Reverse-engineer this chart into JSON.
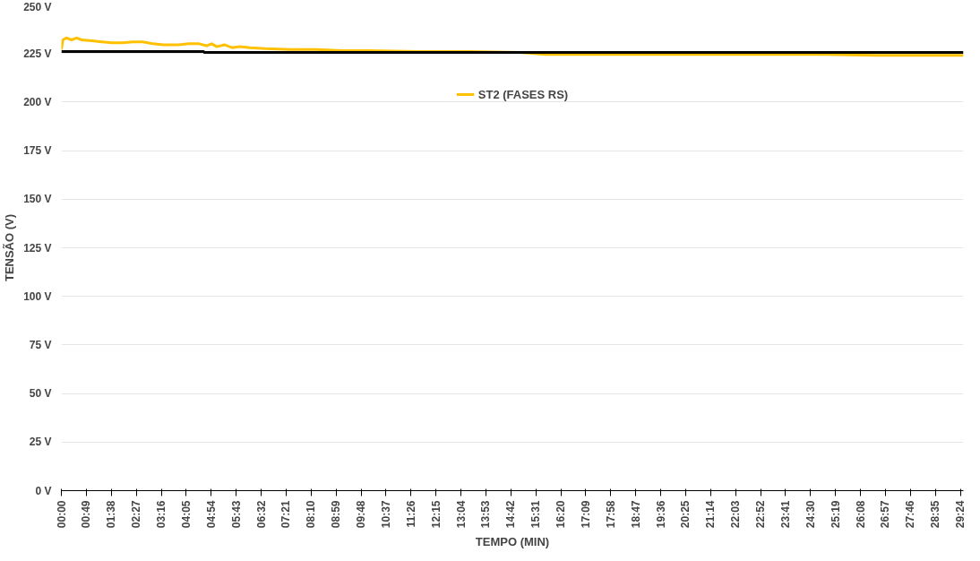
{
  "chart_data": {
    "type": "line",
    "xlabel": "TEMPO (MIN)",
    "ylabel": "TENSÃO (V)",
    "xlim": [
      0,
      1770
    ],
    "ylim": [
      0,
      250
    ],
    "xticks": [
      {
        "value": 0,
        "label": "00:00"
      },
      {
        "value": 49,
        "label": "00:49"
      },
      {
        "value": 98,
        "label": "01:38"
      },
      {
        "value": 147,
        "label": "02:27"
      },
      {
        "value": 196,
        "label": "03:16"
      },
      {
        "value": 245,
        "label": "04:05"
      },
      {
        "value": 294,
        "label": "04:54"
      },
      {
        "value": 343,
        "label": "05:43"
      },
      {
        "value": 392,
        "label": "06:32"
      },
      {
        "value": 441,
        "label": "07:21"
      },
      {
        "value": 490,
        "label": "08:10"
      },
      {
        "value": 539,
        "label": "08:59"
      },
      {
        "value": 588,
        "label": "09:48"
      },
      {
        "value": 637,
        "label": "10:37"
      },
      {
        "value": 686,
        "label": "11:26"
      },
      {
        "value": 735,
        "label": "12:15"
      },
      {
        "value": 784,
        "label": "13:04"
      },
      {
        "value": 833,
        "label": "13:53"
      },
      {
        "value": 882,
        "label": "14:42"
      },
      {
        "value": 931,
        "label": "15:31"
      },
      {
        "value": 980,
        "label": "16:20"
      },
      {
        "value": 1029,
        "label": "17:09"
      },
      {
        "value": 1078,
        "label": "17:58"
      },
      {
        "value": 1127,
        "label": "18:47"
      },
      {
        "value": 1176,
        "label": "19:36"
      },
      {
        "value": 1225,
        "label": "20:25"
      },
      {
        "value": 1274,
        "label": "21:14"
      },
      {
        "value": 1323,
        "label": "22:03"
      },
      {
        "value": 1372,
        "label": "22:52"
      },
      {
        "value": 1421,
        "label": "23:41"
      },
      {
        "value": 1470,
        "label": "24:30"
      },
      {
        "value": 1519,
        "label": "25:19"
      },
      {
        "value": 1568,
        "label": "26:08"
      },
      {
        "value": 1617,
        "label": "26:57"
      },
      {
        "value": 1666,
        "label": "27:46"
      },
      {
        "value": 1715,
        "label": "28:35"
      },
      {
        "value": 1764,
        "label": "29:24"
      }
    ],
    "yticks": [
      {
        "value": 0,
        "label": "0 V"
      },
      {
        "value": 25,
        "label": "25 V"
      },
      {
        "value": 50,
        "label": "50 V"
      },
      {
        "value": 75,
        "label": "75 V"
      },
      {
        "value": 100,
        "label": "100 V"
      },
      {
        "value": 125,
        "label": "125 V"
      },
      {
        "value": 150,
        "label": "150 V"
      },
      {
        "value": 175,
        "label": "175 V"
      },
      {
        "value": 200,
        "label": "200 V"
      },
      {
        "value": 225,
        "label": "225 V"
      },
      {
        "value": 250,
        "label": "250 V"
      }
    ],
    "grid": "y",
    "legend": "top",
    "marker": "none",
    "line_style": "solid",
    "series": [
      {
        "name": "ST2 (FASES RS)",
        "color": "#ffc000",
        "x": [
          0,
          3,
          10,
          20,
          30,
          40,
          60,
          80,
          100,
          120,
          140,
          160,
          180,
          200,
          230,
          250,
          270,
          285,
          295,
          305,
          320,
          335,
          350,
          370,
          400,
          450,
          500,
          550,
          600,
          700,
          800,
          900,
          950,
          1000,
          1100,
          1200,
          1300,
          1400,
          1500,
          1600,
          1700,
          1770
        ],
        "values": [
          227,
          232,
          233,
          232,
          233,
          232,
          231.5,
          231,
          230.5,
          230.5,
          231,
          231,
          230,
          229.5,
          229.5,
          230,
          230,
          229,
          230,
          228.5,
          229.5,
          228,
          228.5,
          228,
          227.5,
          227,
          227,
          226.5,
          226.5,
          226,
          226,
          225.5,
          224.5,
          224.5,
          224.5,
          224.5,
          224.5,
          224.5,
          224.5,
          224,
          224,
          224
        ]
      },
      {
        "color": "#000000",
        "x": [
          0,
          279,
          281,
          1770
        ],
        "values": [
          226,
          226,
          225.5,
          225.5
        ]
      }
    ]
  }
}
